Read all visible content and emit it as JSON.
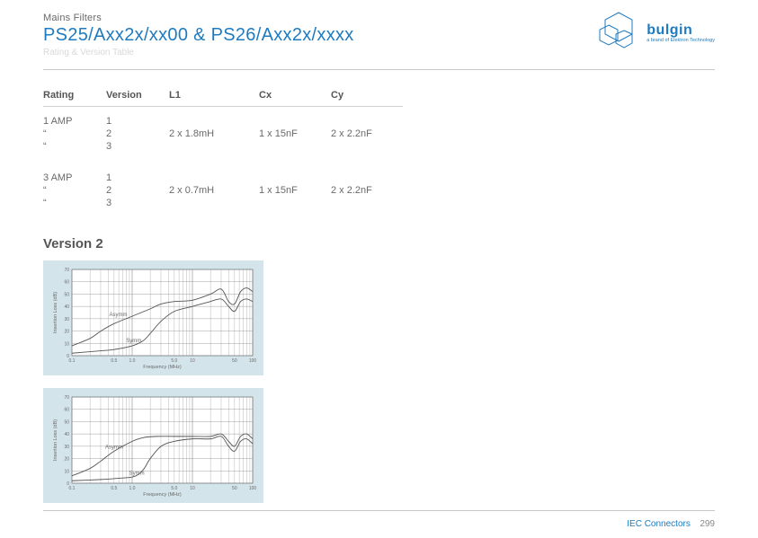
{
  "header": {
    "category": "Mains Filters",
    "title": "PS25/Axx2x/xx00 & PS26/Axx2x/xxxx",
    "subtitle": "Rating & Version Table"
  },
  "logo": {
    "brand": "bulgin",
    "tagline": "a brand of Elektron Technology",
    "hex_stroke": "#1f7bbf"
  },
  "table": {
    "headers": [
      "Rating",
      "Version",
      "L1",
      "Cx",
      "Cy"
    ],
    "groups": [
      {
        "rows": [
          {
            "rating": "1 AMP",
            "version": "1",
            "l1": "",
            "cx": "",
            "cy": ""
          },
          {
            "rating": "“",
            "version": "2",
            "l1": "2 x 1.8mH",
            "cx": "1 x 15nF",
            "cy": "2 x 2.2nF"
          },
          {
            "rating": "“",
            "version": "3",
            "l1": "",
            "cx": "",
            "cy": ""
          }
        ]
      },
      {
        "rows": [
          {
            "rating": "3 AMP",
            "version": "1",
            "l1": "",
            "cx": "",
            "cy": ""
          },
          {
            "rating": "“",
            "version": "2",
            "l1": "2 x 0.7mH",
            "cx": "1 x 15nF",
            "cy": "2 x 2.2nF"
          },
          {
            "rating": "“",
            "version": "3",
            "l1": "",
            "cx": "",
            "cy": ""
          }
        ]
      }
    ]
  },
  "section_heading": "Version 2",
  "charts": [
    {
      "type": "line",
      "background_color": "#d3e4eb",
      "plot_bg": "#ffffff",
      "grid_color": "#888888",
      "axis_color": "#555555",
      "line_color": "#555555",
      "text_color": "#6a6a6a",
      "xlabel": "Frequency (MHz)",
      "ylabel": "Insertion Loss (dB)",
      "label_fontsize": 5.5,
      "tick_fontsize": 5,
      "xscale": "log",
      "x_decades": [
        0.1,
        1.0,
        10,
        100
      ],
      "xtick_labels": [
        "0.1",
        "0.5",
        "1.0",
        "5.0",
        "10",
        "50",
        "100"
      ],
      "xtick_logpos": [
        0,
        0.699,
        1.0,
        1.699,
        2.0,
        2.699,
        3.0
      ],
      "ylim": [
        0,
        70
      ],
      "ytick_step": 10,
      "series": [
        {
          "name": "Asymm",
          "label_x": 0.62,
          "label_y": 32,
          "points": [
            [
              0.0,
              8
            ],
            [
              0.3,
              14
            ],
            [
              0.48,
              20
            ],
            [
              0.7,
              26
            ],
            [
              1.0,
              32
            ],
            [
              1.3,
              38
            ],
            [
              1.48,
              42
            ],
            [
              1.7,
              44
            ],
            [
              2.0,
              45
            ],
            [
              2.3,
              50
            ],
            [
              2.48,
              54
            ],
            [
              2.6,
              44
            ],
            [
              2.7,
              42
            ],
            [
              2.8,
              52
            ],
            [
              2.9,
              55
            ],
            [
              3.0,
              52
            ]
          ]
        },
        {
          "name": "Symm",
          "label_x": 0.9,
          "label_y": 11,
          "points": [
            [
              0.0,
              2
            ],
            [
              0.48,
              4
            ],
            [
              0.7,
              5
            ],
            [
              1.0,
              8
            ],
            [
              1.18,
              12
            ],
            [
              1.3,
              18
            ],
            [
              1.48,
              28
            ],
            [
              1.7,
              36
            ],
            [
              2.0,
              40
            ],
            [
              2.3,
              44
            ],
            [
              2.48,
              46
            ],
            [
              2.6,
              40
            ],
            [
              2.7,
              36
            ],
            [
              2.8,
              44
            ],
            [
              2.9,
              46
            ],
            [
              3.0,
              44
            ]
          ]
        }
      ]
    },
    {
      "type": "line",
      "background_color": "#d3e4eb",
      "plot_bg": "#ffffff",
      "grid_color": "#888888",
      "axis_color": "#555555",
      "line_color": "#555555",
      "text_color": "#6a6a6a",
      "xlabel": "Frequency (MHz)",
      "ylabel": "Insertion Loss (dB)",
      "label_fontsize": 5.5,
      "tick_fontsize": 5,
      "xscale": "log",
      "x_decades": [
        0.1,
        1.0,
        10,
        100
      ],
      "xtick_labels": [
        "0.1",
        "0.5",
        "1.0",
        "5.0",
        "10",
        "50",
        "100"
      ],
      "xtick_logpos": [
        0,
        0.699,
        1.0,
        1.699,
        2.0,
        2.699,
        3.0
      ],
      "ylim": [
        0,
        70
      ],
      "ytick_step": 10,
      "series": [
        {
          "name": "Asymm",
          "label_x": 0.55,
          "label_y": 28,
          "points": [
            [
              0.0,
              6
            ],
            [
              0.3,
              12
            ],
            [
              0.48,
              18
            ],
            [
              0.7,
              26
            ],
            [
              1.0,
              34
            ],
            [
              1.18,
              37
            ],
            [
              1.4,
              38
            ],
            [
              1.7,
              38
            ],
            [
              2.0,
              38
            ],
            [
              2.3,
              38
            ],
            [
              2.48,
              40
            ],
            [
              2.6,
              34
            ],
            [
              2.7,
              30
            ],
            [
              2.8,
              38
            ],
            [
              2.9,
              40
            ],
            [
              3.0,
              36
            ]
          ]
        },
        {
          "name": "Symm",
          "label_x": 0.95,
          "label_y": 7,
          "points": [
            [
              0.0,
              2
            ],
            [
              0.48,
              3
            ],
            [
              0.78,
              4
            ],
            [
              1.0,
              5
            ],
            [
              1.1,
              7
            ],
            [
              1.2,
              12
            ],
            [
              1.3,
              20
            ],
            [
              1.48,
              30
            ],
            [
              1.7,
              34
            ],
            [
              2.0,
              36
            ],
            [
              2.3,
              36
            ],
            [
              2.48,
              38
            ],
            [
              2.6,
              30
            ],
            [
              2.7,
              26
            ],
            [
              2.8,
              34
            ],
            [
              2.9,
              36
            ],
            [
              3.0,
              32
            ]
          ]
        }
      ]
    }
  ],
  "footer": {
    "label": "IEC Connectors",
    "page": "299"
  }
}
